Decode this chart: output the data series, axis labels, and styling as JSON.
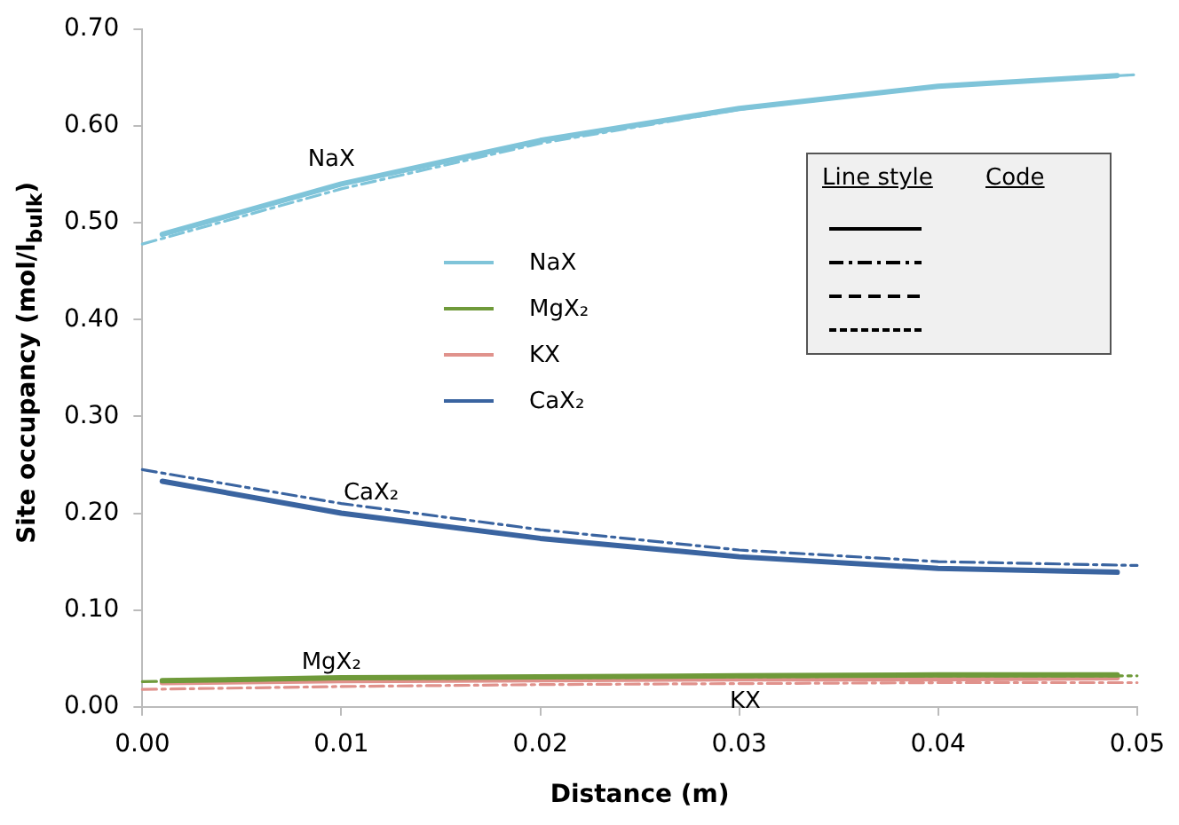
{
  "chart_data": {
    "type": "line",
    "xlabel": "Distance (m)",
    "ylabel": "Site occupancy (mol/l$_{bulk}$)",
    "xlim": [
      0,
      0.05
    ],
    "xticks": [
      {
        "value": 0,
        "label": "0.00"
      },
      {
        "value": 0.01,
        "label": "0.01"
      },
      {
        "value": 0.02,
        "label": "0.02"
      },
      {
        "value": 0.03,
        "label": "0.03"
      },
      {
        "value": 0.04,
        "label": "0.04"
      },
      {
        "value": 0.05,
        "label": "0.05"
      }
    ],
    "ylim": [
      0,
      0.7
    ],
    "yticks": [
      {
        "value": 0,
        "label": "0.00"
      },
      {
        "value": 0.1,
        "label": "0.10"
      },
      {
        "value": 0.2,
        "label": "0.20"
      },
      {
        "value": 0.3,
        "label": "0.30"
      },
      {
        "value": 0.4,
        "label": "0.40"
      },
      {
        "value": 0.5,
        "label": "0.50"
      },
      {
        "value": 0.6,
        "label": "0.60"
      },
      {
        "value": 0.7,
        "label": "0.70"
      }
    ],
    "grid": false,
    "legend": "center",
    "marker": "none",
    "series": [
      {
        "color": "#7fc4d9",
        "line_style": "dashdot",
        "x": [
          0,
          0.01,
          0.02,
          0.03,
          0.04,
          0.05
        ],
        "values": [
          0.478,
          0.535,
          0.582,
          0.617,
          0.641,
          0.653
        ]
      },
      {
        "color": "#6f9a3a",
        "line_style": "dashdot",
        "x": [
          0,
          0.01,
          0.02,
          0.03,
          0.04,
          0.05
        ],
        "values": [
          0.026,
          0.029,
          0.03,
          0.031,
          0.032,
          0.032
        ]
      },
      {
        "color": "#e0928c",
        "line_style": "dashdot",
        "x": [
          0,
          0.01,
          0.02,
          0.03,
          0.04,
          0.05
        ],
        "values": [
          0.018,
          0.021,
          0.023,
          0.024,
          0.025,
          0.025
        ]
      },
      {
        "color": "#3a64a0",
        "line_style": "dashdot",
        "x": [
          0,
          0.01,
          0.02,
          0.03,
          0.04,
          0.05
        ],
        "values": [
          0.245,
          0.21,
          0.183,
          0.162,
          0.15,
          0.146
        ]
      },
      {
        "name": "NaX",
        "color": "#7fc4d9",
        "line_style": "solid",
        "x": [
          0.001,
          0.01,
          0.02,
          0.03,
          0.04,
          0.049
        ],
        "values": [
          0.488,
          0.54,
          0.585,
          0.618,
          0.641,
          0.652
        ]
      },
      {
        "name": "MgX₂",
        "color": "#6f9a3a",
        "line_style": "solid",
        "x": [
          0.001,
          0.01,
          0.02,
          0.03,
          0.04,
          0.049
        ],
        "values": [
          0.027,
          0.03,
          0.031,
          0.032,
          0.033,
          0.033
        ]
      },
      {
        "name": "KX",
        "color": "#e0928c",
        "line_style": "solid",
        "x": [
          0.001,
          0.01,
          0.02,
          0.03,
          0.04,
          0.049
        ],
        "values": [
          0.025,
          0.027,
          0.028,
          0.029,
          0.029,
          0.03
        ]
      },
      {
        "name": "CaX₂",
        "color": "#3a64a0",
        "line_style": "solid",
        "x": [
          0.001,
          0.01,
          0.02,
          0.03,
          0.04,
          0.049
        ],
        "values": [
          0.233,
          0.2,
          0.174,
          0.155,
          0.143,
          0.139
        ]
      }
    ],
    "annotations": [
      "NaX",
      "CaX₂",
      "MgX₂",
      "KX",
      "Line style",
      "Code"
    ]
  }
}
